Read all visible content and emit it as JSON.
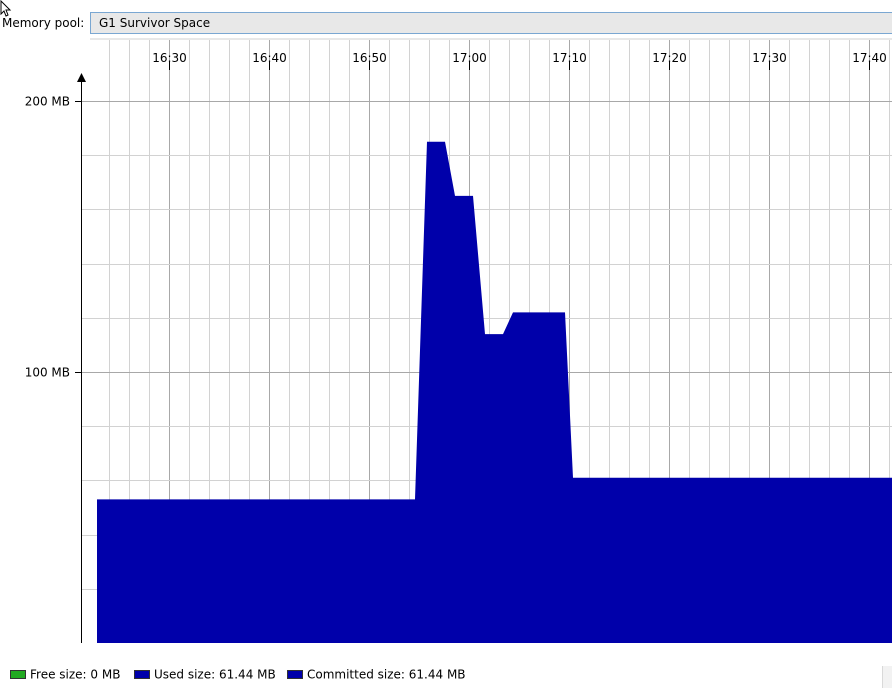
{
  "pool": {
    "label": "Memory pool:",
    "selected": "G1 Survivor Space"
  },
  "legend": {
    "free": "Free size: 0 MB",
    "used": "Used size: 61.44 MB",
    "committed": "Committed size: 61.44 MB"
  },
  "colors": {
    "free": "#22aa22",
    "used": "#0000aa",
    "committed": "#0000aa",
    "grid": "#b8b8b8",
    "select_border": "#7aa7d2"
  },
  "chart_data": {
    "type": "area",
    "x_unit": "time",
    "y_unit": "MB",
    "time_ticks": [
      "16:30",
      "16:40",
      "16:50",
      "17:00",
      "17:10",
      "17:20",
      "17:30",
      "17:40"
    ],
    "y_ticks": [
      {
        "value": 100,
        "label": "100 MB"
      },
      {
        "value": 200,
        "label": "200 MB"
      }
    ],
    "xlim": [
      "16:23",
      "17:42"
    ],
    "ylim": [
      0,
      200
    ],
    "grid": true,
    "series": [
      {
        "key": "used",
        "points": [
          {
            "t": "16:23",
            "mb": 53
          },
          {
            "t": "16:54.6",
            "mb": 53
          },
          {
            "t": "16:55.8",
            "mb": 185
          },
          {
            "t": "16:57.6",
            "mb": 185
          },
          {
            "t": "16:58.6",
            "mb": 165
          },
          {
            "t": "17:00.4",
            "mb": 165
          },
          {
            "t": "17:01.6",
            "mb": 114
          },
          {
            "t": "17:03.4",
            "mb": 114
          },
          {
            "t": "17:04.4",
            "mb": 122
          },
          {
            "t": "17:09.6",
            "mb": 122
          },
          {
            "t": "17:10.4",
            "mb": 61
          },
          {
            "t": "17:42",
            "mb": 61
          }
        ]
      }
    ]
  }
}
